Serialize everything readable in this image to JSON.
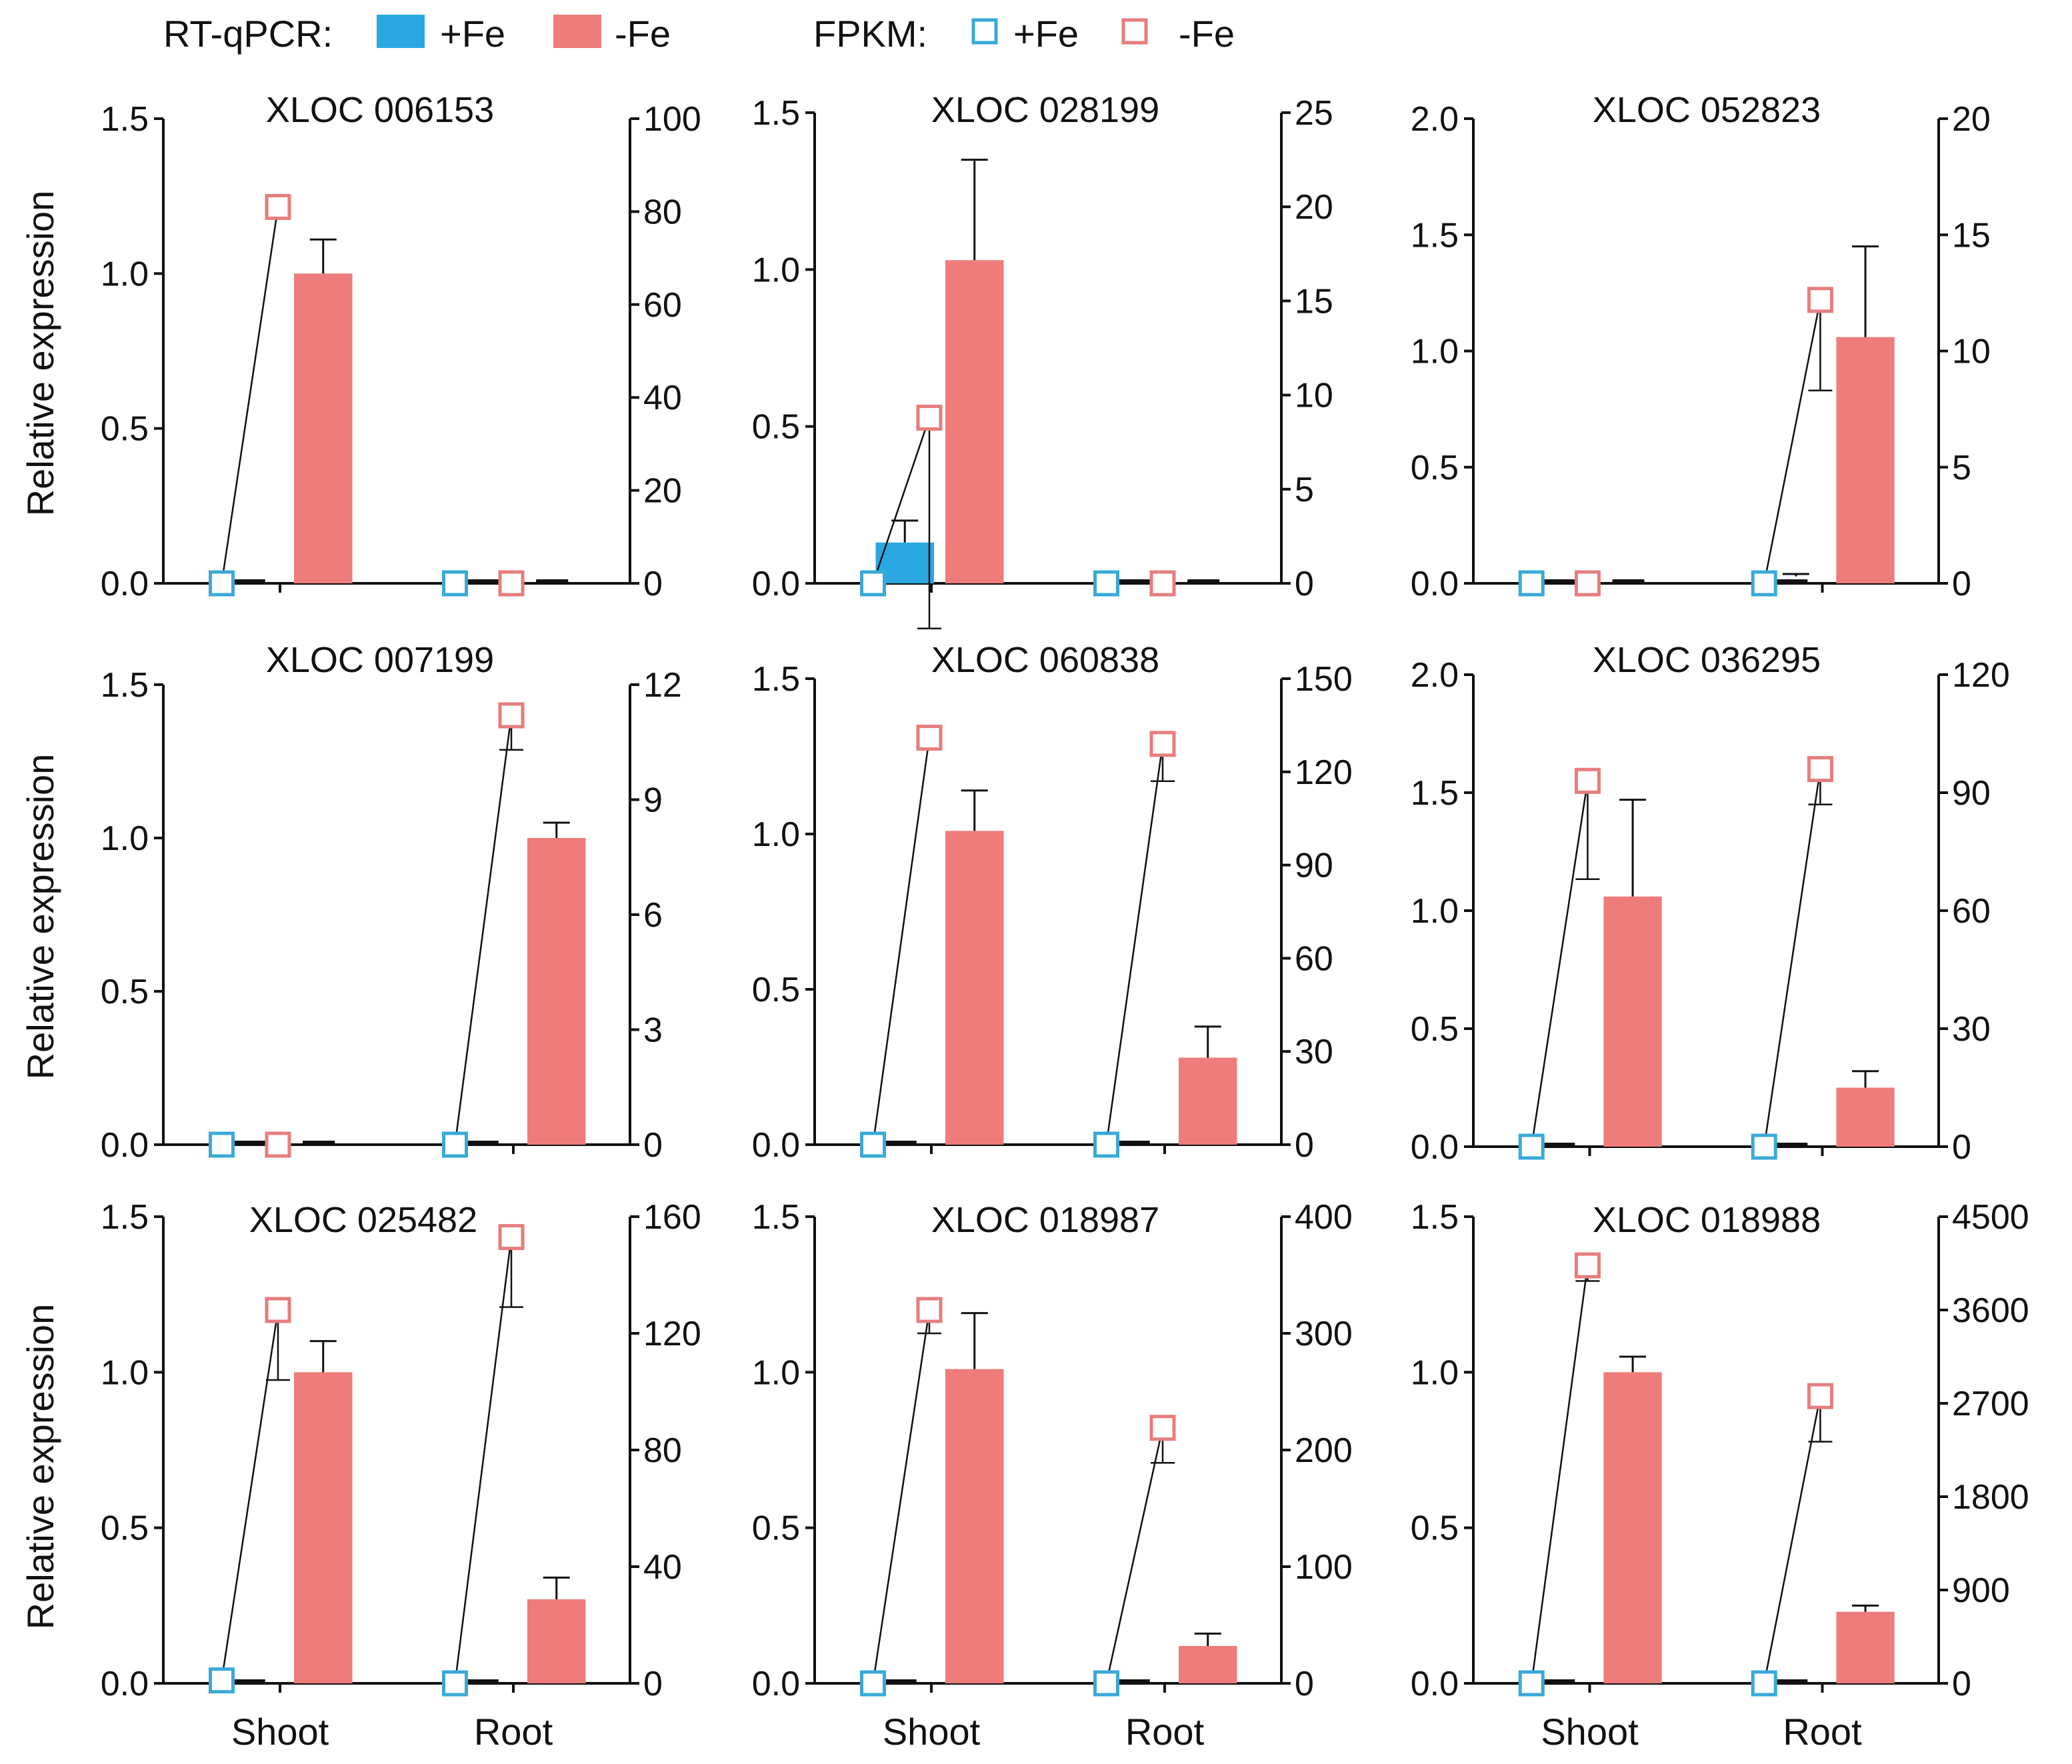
{
  "legend": {
    "rtqpcr_label": "RT-qPCR:",
    "fpkm_label": "FPKM:",
    "plus_fe": "+Fe",
    "minus_fe": "-Fe"
  },
  "colors": {
    "plus_fe_bar": "#2aa7e1",
    "minus_fe_bar": "#ee7c7a",
    "plus_fe_marker": "#39a9da",
    "minus_fe_marker": "#e77d7d",
    "axis": "#111111"
  },
  "chart_data": [
    {
      "type": "bar",
      "title": "XLOC 006153",
      "categories": [
        "Shoot",
        "Root"
      ],
      "ylabel": "Relative expression",
      "ylim": [
        0,
        1.5
      ],
      "left_ticks": [
        "0.0",
        "0.5",
        "1.0",
        "1.5"
      ],
      "right_ylim": [
        0,
        100
      ],
      "right_ticks": [
        "0",
        "20",
        "40",
        "60",
        "80",
        "100"
      ],
      "series": [
        {
          "name": "RT-qPCR +Fe",
          "values": [
            0,
            0
          ],
          "errors": [
            0,
            0
          ]
        },
        {
          "name": "RT-qPCR -Fe",
          "values": [
            1.0,
            0
          ],
          "errors": [
            0.11,
            0
          ]
        }
      ],
      "fpkm": [
        {
          "name": "FPKM +Fe",
          "values": [
            0,
            0
          ],
          "errors": [
            0,
            0
          ]
        },
        {
          "name": "FPKM -Fe",
          "values": [
            81,
            0
          ],
          "errors": [
            0,
            0
          ]
        }
      ]
    },
    {
      "type": "bar",
      "title": "XLOC 028199",
      "categories": [
        "Shoot",
        "Root"
      ],
      "ylabel": "",
      "ylim": [
        0,
        1.5
      ],
      "left_ticks": [
        "0.0",
        "0.5",
        "1.0",
        "1.5"
      ],
      "right_ylim": [
        0,
        25
      ],
      "right_ticks": [
        "0",
        "5",
        "10",
        "15",
        "20",
        "25"
      ],
      "series": [
        {
          "name": "RT-qPCR +Fe",
          "values": [
            0.13,
            0.01
          ],
          "errors": [
            0.07,
            0
          ]
        },
        {
          "name": "RT-qPCR -Fe",
          "values": [
            1.03,
            0.01
          ],
          "errors": [
            0.32,
            0
          ]
        }
      ],
      "fpkm": [
        {
          "name": "FPKM +Fe",
          "values": [
            0,
            0
          ],
          "errors": [
            0,
            0
          ]
        },
        {
          "name": "FPKM -Fe",
          "values": [
            8.8,
            0
          ],
          "errors": [
            11.2,
            0
          ]
        }
      ]
    },
    {
      "type": "bar",
      "title": "XLOC 052823",
      "categories": [
        "Shoot",
        "Root"
      ],
      "ylabel": "",
      "ylim": [
        0,
        2.0
      ],
      "left_ticks": [
        "0.0",
        "0.5",
        "1.0",
        "1.5",
        "2.0"
      ],
      "right_ylim": [
        0,
        20
      ],
      "right_ticks": [
        "0",
        "5",
        "10",
        "15",
        "20"
      ],
      "series": [
        {
          "name": "RT-qPCR +Fe",
          "values": [
            0.01,
            0.03
          ],
          "errors": [
            0,
            0.01
          ]
        },
        {
          "name": "RT-qPCR -Fe",
          "values": [
            0.01,
            1.06
          ],
          "errors": [
            0,
            0.39
          ]
        }
      ],
      "fpkm": [
        {
          "name": "FPKM +Fe",
          "values": [
            0,
            0
          ],
          "errors": [
            0,
            0
          ]
        },
        {
          "name": "FPKM -Fe",
          "values": [
            0,
            12.2
          ],
          "errors": [
            0,
            3.9
          ]
        }
      ]
    },
    {
      "type": "bar",
      "title": "XLOC 007199",
      "categories": [
        "Shoot",
        "Root"
      ],
      "ylabel": "Relative expression",
      "ylim": [
        0,
        1.5
      ],
      "left_ticks": [
        "0.0",
        "0.5",
        "1.0",
        "1.5"
      ],
      "right_ylim": [
        0,
        12
      ],
      "right_ticks": [
        "0",
        "3",
        "6",
        "9",
        "12"
      ],
      "series": [
        {
          "name": "RT-qPCR +Fe",
          "values": [
            0,
            0
          ],
          "errors": [
            0,
            0
          ]
        },
        {
          "name": "RT-qPCR -Fe",
          "values": [
            0,
            1.0
          ],
          "errors": [
            0,
            0.05
          ]
        }
      ],
      "fpkm": [
        {
          "name": "FPKM +Fe",
          "values": [
            0,
            0
          ],
          "errors": [
            0,
            0
          ]
        },
        {
          "name": "FPKM -Fe",
          "values": [
            0,
            11.2
          ],
          "errors": [
            0,
            0.9
          ]
        }
      ]
    },
    {
      "type": "bar",
      "title": "XLOC 060838",
      "categories": [
        "Shoot",
        "Root"
      ],
      "ylabel": "",
      "ylim": [
        0,
        1.5
      ],
      "left_ticks": [
        "0.0",
        "0.5",
        "1.0",
        "1.5"
      ],
      "right_ylim": [
        0,
        150
      ],
      "right_ticks": [
        "0",
        "30",
        "60",
        "90",
        "120",
        "150"
      ],
      "series": [
        {
          "name": "RT-qPCR +Fe",
          "values": [
            0,
            0
          ],
          "errors": [
            0,
            0
          ]
        },
        {
          "name": "RT-qPCR -Fe",
          "values": [
            1.01,
            0.28
          ],
          "errors": [
            0.13,
            0.1
          ]
        }
      ],
      "fpkm": [
        {
          "name": "FPKM +Fe",
          "values": [
            0,
            0
          ],
          "errors": [
            0,
            0
          ]
        },
        {
          "name": "FPKM -Fe",
          "values": [
            131,
            129
          ],
          "errors": [
            0,
            12
          ]
        }
      ]
    },
    {
      "type": "bar",
      "title": "XLOC 036295",
      "categories": [
        "Shoot",
        "Root"
      ],
      "ylabel": "",
      "ylim": [
        0,
        2.0
      ],
      "left_ticks": [
        "0.0",
        "0.5",
        "1.0",
        "1.5",
        "2.0"
      ],
      "right_ylim": [
        0,
        120
      ],
      "right_ticks": [
        "0",
        "30",
        "60",
        "90",
        "120"
      ],
      "series": [
        {
          "name": "RT-qPCR +Fe",
          "values": [
            0,
            0
          ],
          "errors": [
            0,
            0
          ]
        },
        {
          "name": "RT-qPCR -Fe",
          "values": [
            1.06,
            0.25
          ],
          "errors": [
            0.41,
            0.07
          ]
        }
      ],
      "fpkm": [
        {
          "name": "FPKM +Fe",
          "values": [
            0,
            0
          ],
          "errors": [
            0,
            0
          ]
        },
        {
          "name": "FPKM -Fe",
          "values": [
            93,
            96
          ],
          "errors": [
            25,
            9
          ]
        }
      ]
    },
    {
      "type": "bar",
      "title": "XLOC 025482",
      "categories": [
        "Shoot",
        "Root"
      ],
      "ylabel": "Relative expression",
      "ylim": [
        0,
        1.5
      ],
      "left_ticks": [
        "0.0",
        "0.5",
        "1.0",
        "1.5"
      ],
      "right_ylim": [
        0,
        160
      ],
      "right_ticks": [
        "0",
        "40",
        "80",
        "120",
        "160"
      ],
      "series": [
        {
          "name": "RT-qPCR +Fe",
          "values": [
            0.01,
            0.01
          ],
          "errors": [
            0,
            0
          ]
        },
        {
          "name": "RT-qPCR -Fe",
          "values": [
            1.0,
            0.27
          ],
          "errors": [
            0.1,
            0.07
          ]
        }
      ],
      "fpkm": [
        {
          "name": "FPKM +Fe",
          "values": [
            1,
            0
          ],
          "errors": [
            0,
            0
          ]
        },
        {
          "name": "FPKM -Fe",
          "values": [
            128,
            153
          ],
          "errors": [
            24,
            24
          ]
        }
      ]
    },
    {
      "type": "bar",
      "title": "XLOC 018987",
      "categories": [
        "Shoot",
        "Root"
      ],
      "ylabel": "",
      "ylim": [
        0,
        1.5
      ],
      "left_ticks": [
        "0.0",
        "0.5",
        "1.0",
        "1.5"
      ],
      "right_ylim": [
        0,
        400
      ],
      "right_ticks": [
        "0",
        "100",
        "200",
        "300",
        "400"
      ],
      "series": [
        {
          "name": "RT-qPCR +Fe",
          "values": [
            0,
            0.01
          ],
          "errors": [
            0,
            0
          ]
        },
        {
          "name": "RT-qPCR -Fe",
          "values": [
            1.01,
            0.12
          ],
          "errors": [
            0.18,
            0.04
          ]
        }
      ],
      "fpkm": [
        {
          "name": "FPKM +Fe",
          "values": [
            0,
            0
          ],
          "errors": [
            0,
            0
          ]
        },
        {
          "name": "FPKM -Fe",
          "values": [
            320,
            219
          ],
          "errors": [
            20,
            30
          ]
        }
      ]
    },
    {
      "type": "bar",
      "title": "XLOC 018988",
      "categories": [
        "Shoot",
        "Root"
      ],
      "ylabel": "",
      "ylim": [
        0,
        1.5
      ],
      "left_ticks": [
        "0.0",
        "0.5",
        "1.0",
        "1.5"
      ],
      "right_ylim": [
        0,
        4500
      ],
      "right_ticks": [
        "0",
        "900",
        "1800",
        "2700",
        "3600",
        "4500"
      ],
      "series": [
        {
          "name": "RT-qPCR +Fe",
          "values": [
            0,
            0.01
          ],
          "errors": [
            0,
            0
          ]
        },
        {
          "name": "RT-qPCR -Fe",
          "values": [
            1.0,
            0.23
          ],
          "errors": [
            0.05,
            0.02
          ]
        }
      ],
      "fpkm": [
        {
          "name": "FPKM +Fe",
          "values": [
            0,
            0
          ],
          "errors": [
            0,
            0
          ]
        },
        {
          "name": "FPKM -Fe",
          "values": [
            4030,
            2770
          ],
          "errors": [
            150,
            440
          ]
        }
      ]
    }
  ]
}
